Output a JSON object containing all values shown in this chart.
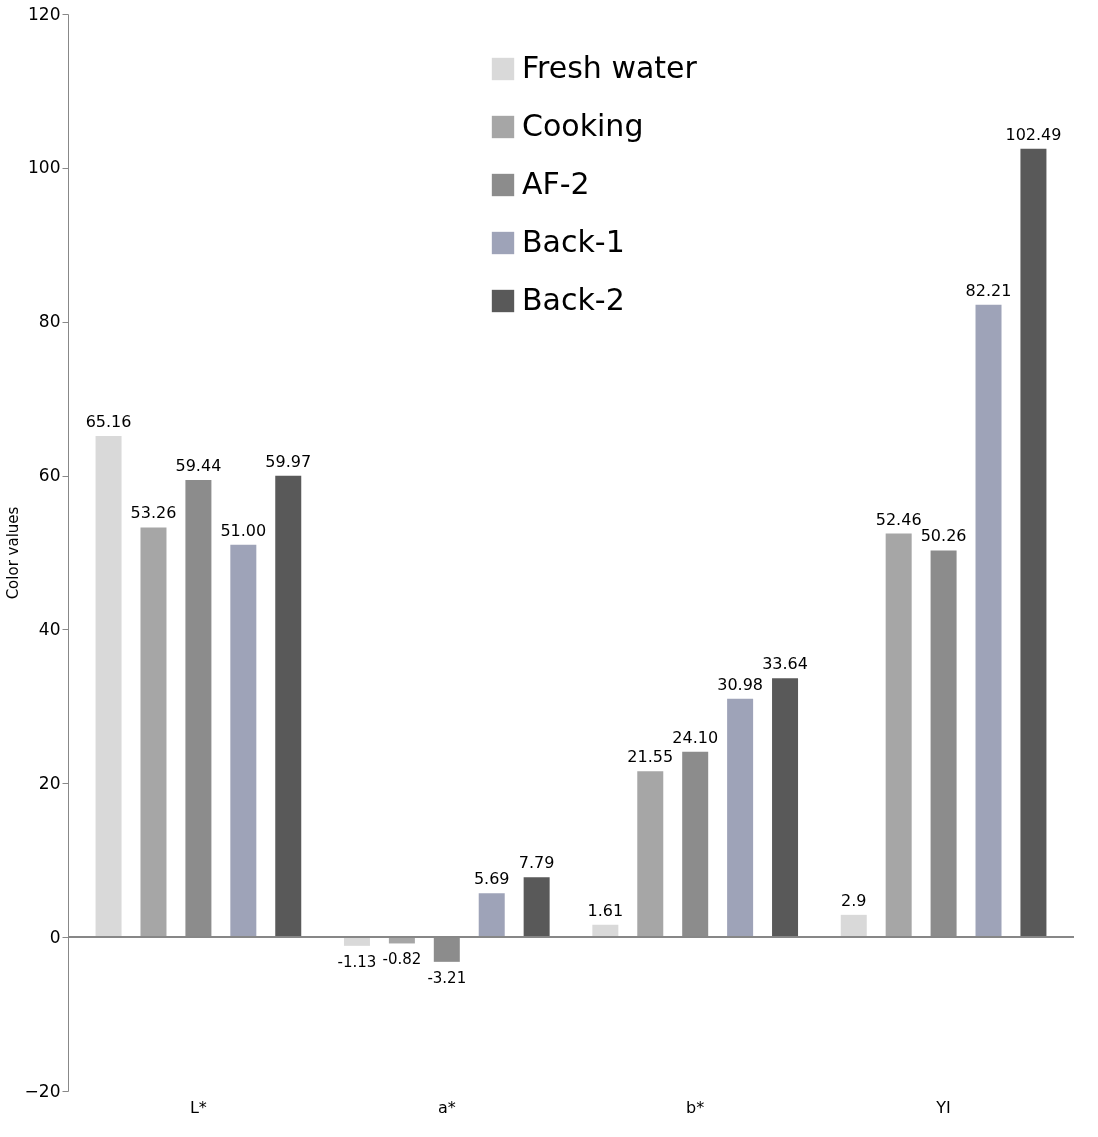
{
  "chart_data": {
    "type": "bar",
    "ylabel": "Color values",
    "categories": [
      "L*",
      "a*",
      "b*",
      "YI"
    ],
    "series": [
      {
        "name": "Fresh water",
        "color": "#d9d9d9",
        "values": [
          65.16,
          -1.13,
          1.61,
          2.9
        ],
        "value_labels": [
          "65.16",
          "-1.13",
          "1.61",
          "2.9"
        ]
      },
      {
        "name": "Cooking",
        "color": "#a6a6a6",
        "values": [
          53.26,
          -0.82,
          21.55,
          52.46
        ],
        "value_labels": [
          "53.26",
          "-0.82",
          "21.55",
          "52.46"
        ]
      },
      {
        "name": "AF-2",
        "color": "#8c8c8c",
        "values": [
          59.44,
          -3.21,
          24.1,
          50.26
        ],
        "value_labels": [
          "59.44",
          "-3.21",
          "24.10",
          "50.26"
        ]
      },
      {
        "name": "Back-1",
        "color": "#9ea3b8",
        "values": [
          51.0,
          5.69,
          30.98,
          82.21
        ],
        "value_labels": [
          "51.00",
          "5.69",
          "30.98",
          "82.21"
        ]
      },
      {
        "name": "Back-2",
        "color": "#595959",
        "values": [
          59.97,
          7.79,
          33.64,
          102.49
        ],
        "value_labels": [
          "59.97",
          "7.79",
          "33.64",
          "102.49"
        ]
      }
    ],
    "ylim": [
      -20,
      120
    ],
    "yticks": [
      -20,
      0,
      20,
      40,
      60,
      80,
      100,
      120
    ],
    "legend": "top"
  }
}
